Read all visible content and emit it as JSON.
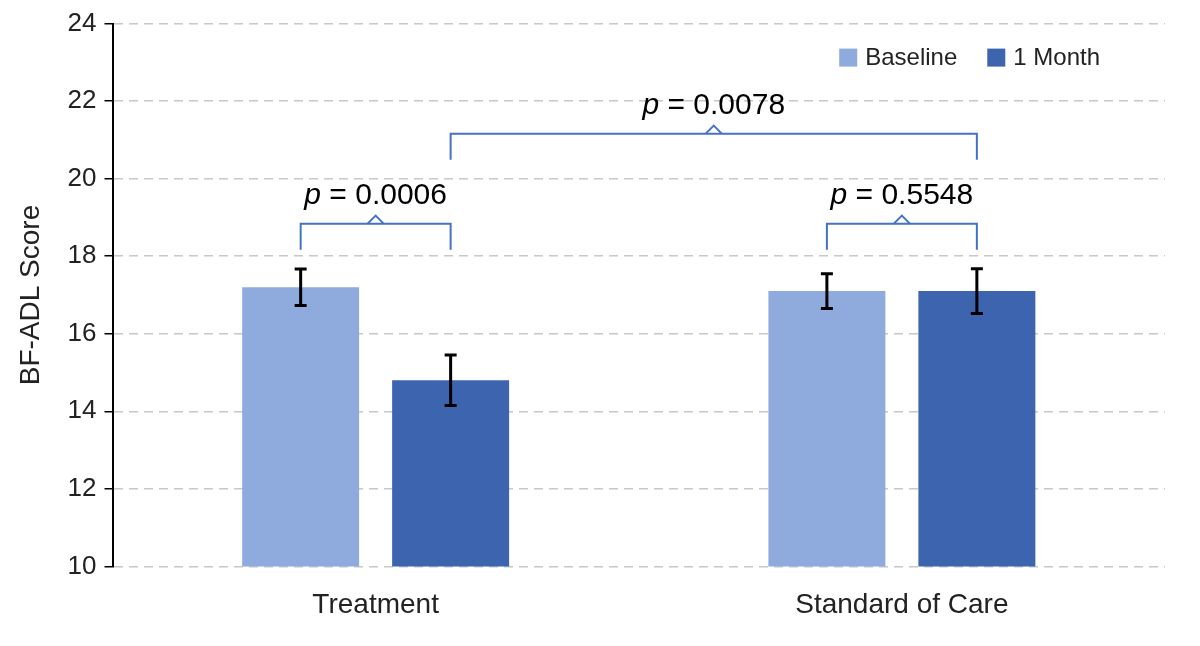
{
  "chart_data": {
    "type": "bar",
    "y_label": "BF-ADL Score",
    "categories": [
      "Treatment",
      "Standard of Care"
    ],
    "series": [
      {
        "name": "Baseline",
        "color": "#8faadc",
        "values": [
          17.2,
          17.1
        ],
        "errors": [
          0.47,
          0.45
        ]
      },
      {
        "name": "1 Month",
        "color": "#3d64ae",
        "values": [
          14.8,
          17.1
        ],
        "errors": [
          0.65,
          0.58
        ]
      }
    ],
    "ylim": [
      10,
      24
    ],
    "yticks": [
      10,
      12,
      14,
      16,
      18,
      20,
      22,
      24
    ],
    "grid": true,
    "legend": "upper right",
    "data_labels": true,
    "annotations": [
      {
        "text": "p = 0.0006",
        "from": {
          "category": "Treatment",
          "series": "Baseline"
        },
        "to": {
          "category": "Treatment",
          "series": "1 Month"
        }
      },
      {
        "text": "p = 0.5548",
        "from": {
          "category": "Standard of Care",
          "series": "Baseline"
        },
        "to": {
          "category": "Standard of Care",
          "series": "1 Month"
        }
      },
      {
        "text": "p = 0.0078",
        "from": {
          "category": "Treatment",
          "series": "1 Month"
        },
        "to": {
          "category": "Standard of Care",
          "series": "1 Month"
        }
      }
    ]
  }
}
